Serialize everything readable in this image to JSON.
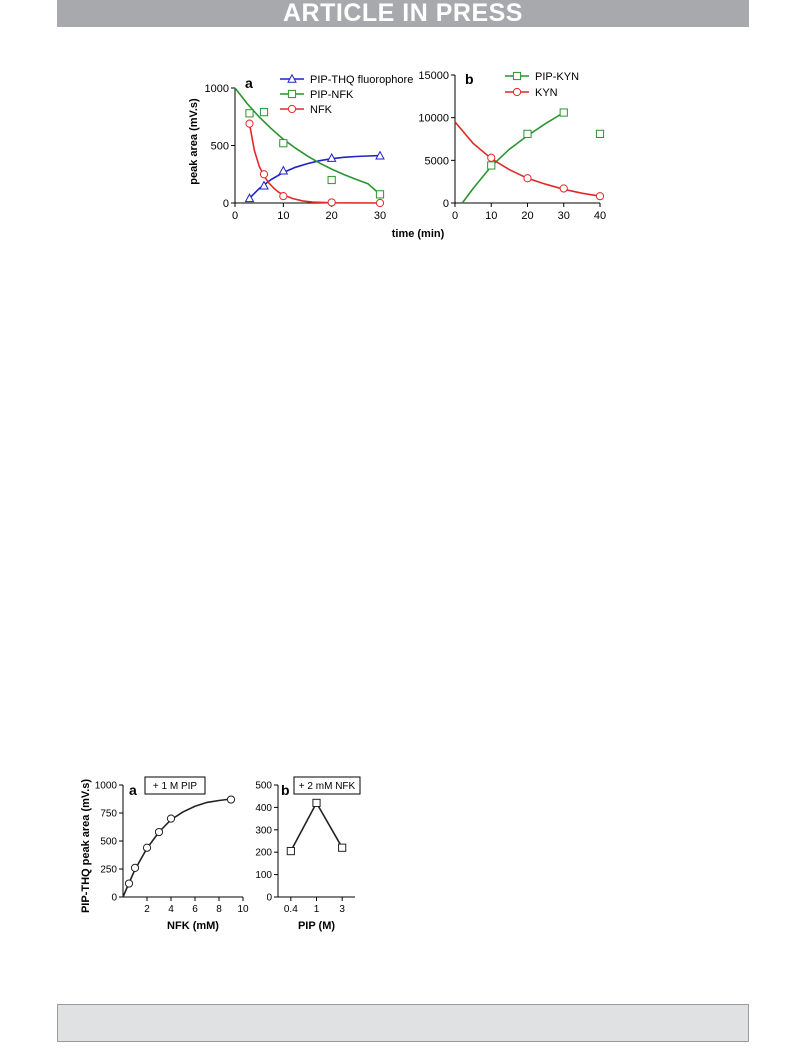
{
  "header": {
    "banner_text": "ARTICLE IN PRESS"
  },
  "figure1": {
    "ylabel": "peak area (mV.s)",
    "xlabel": "time (min)"
  },
  "figure2": {
    "ylabel": "PIP-THQ peak area  (mV.s)"
  },
  "chart_data": [
    {
      "type": "line",
      "panel_label": "a",
      "xlim": [
        0,
        30
      ],
      "ylim": [
        0,
        1000
      ],
      "xticks": [
        "0",
        "10",
        "20",
        "30"
      ],
      "yticks": [
        "0",
        "500",
        "1000"
      ],
      "legend_position": "top-right",
      "series": [
        {
          "name": "PIP-THQ fluorophore",
          "color": "#1f22c6",
          "marker": "triangle",
          "x": [
            3,
            6,
            10,
            20,
            30
          ],
          "y": [
            40,
            150,
            280,
            390,
            410
          ],
          "fit_x": [
            2.5,
            5,
            7.5,
            10,
            12.5,
            15,
            17.5,
            20,
            22.5,
            25,
            27.5,
            30
          ],
          "fit_y": [
            20,
            125,
            205,
            265,
            310,
            343,
            368,
            385,
            397,
            404,
            409,
            412
          ]
        },
        {
          "name": "PIP-NFK",
          "color": "#2a9430",
          "marker": "square",
          "x": [
            3,
            6,
            10,
            20,
            30
          ],
          "y": [
            780,
            790,
            520,
            200,
            75
          ],
          "fit_x": [
            0,
            2.5,
            5,
            7.5,
            10,
            12.5,
            15,
            17.5,
            20,
            22.5,
            25,
            27.5,
            30
          ],
          "fit_y": [
            1000,
            865,
            748,
            646,
            555,
            477,
            408,
            347,
            295,
            248,
            206,
            168,
            75
          ]
        },
        {
          "name": "NFK",
          "color": "#e02828",
          "marker": "circle",
          "x": [
            3,
            6,
            10,
            20,
            30
          ],
          "y": [
            690,
            250,
            60,
            5,
            0
          ],
          "fit_x": [
            3,
            4,
            5,
            6,
            7,
            8,
            9,
            10,
            12,
            14,
            16,
            20,
            30
          ],
          "fit_y": [
            690,
            460,
            320,
            235,
            175,
            130,
            95,
            70,
            38,
            18,
            8,
            2,
            0
          ]
        }
      ]
    },
    {
      "type": "line",
      "panel_label": "b",
      "xlim": [
        0,
        40
      ],
      "ylim": [
        0,
        15000
      ],
      "xticks": [
        "0",
        "10",
        "20",
        "30",
        "40"
      ],
      "yticks": [
        "0",
        "5000",
        "10000",
        "15000"
      ],
      "legend_position": "top-left",
      "series": [
        {
          "name": "PIP-KYN",
          "color": "#2a9430",
          "marker": "square",
          "x": [
            10,
            20,
            30,
            40
          ],
          "y": [
            4400,
            8100,
            10600,
            8100
          ],
          "fit_x": [
            2,
            5,
            10,
            15,
            20,
            25,
            30
          ],
          "fit_y": [
            0,
            1700,
            4300,
            6300,
            7900,
            9300,
            10600
          ]
        },
        {
          "name": "KYN",
          "color": "#e02828",
          "marker": "circle",
          "x": [
            10,
            20,
            30,
            40
          ],
          "y": [
            5300,
            2900,
            1700,
            800
          ],
          "fit_x": [
            0,
            5,
            10,
            15,
            20,
            25,
            30,
            35,
            40
          ],
          "fit_y": [
            9500,
            7000,
            5200,
            3900,
            2900,
            2200,
            1600,
            1150,
            800
          ]
        }
      ]
    },
    {
      "type": "line",
      "panel_label": "a",
      "annotation": "+ 1 M PIP",
      "xlabel": "NFK (mM)",
      "xlim": [
        0,
        10
      ],
      "ylim": [
        0,
        1000
      ],
      "xticks": [
        "2",
        "4",
        "6",
        "8",
        "10"
      ],
      "yticks": [
        "0",
        "250",
        "500",
        "750",
        "1000"
      ],
      "series": [
        {
          "marker": "circle",
          "color": "#222222",
          "x": [
            0.5,
            1,
            2,
            3,
            4,
            9
          ],
          "y": [
            120,
            260,
            440,
            580,
            700,
            870
          ],
          "fit_x": [
            0,
            0.5,
            1,
            1.5,
            2,
            3,
            4,
            5,
            6,
            7,
            8,
            9
          ],
          "fit_y": [
            0,
            125,
            245,
            340,
            435,
            580,
            690,
            760,
            810,
            845,
            862,
            875
          ]
        }
      ]
    },
    {
      "type": "line",
      "panel_label": "b",
      "annotation": "+ 2 mM NFK",
      "xlabel": "PIP (M)",
      "categories": [
        "0.4",
        "1",
        "3"
      ],
      "ylim": [
        0,
        500
      ],
      "yticks": [
        "0",
        "100",
        "200",
        "300",
        "400",
        "500"
      ],
      "series": [
        {
          "marker": "square",
          "color": "#222222",
          "values": [
            205,
            420,
            220
          ]
        }
      ]
    }
  ]
}
